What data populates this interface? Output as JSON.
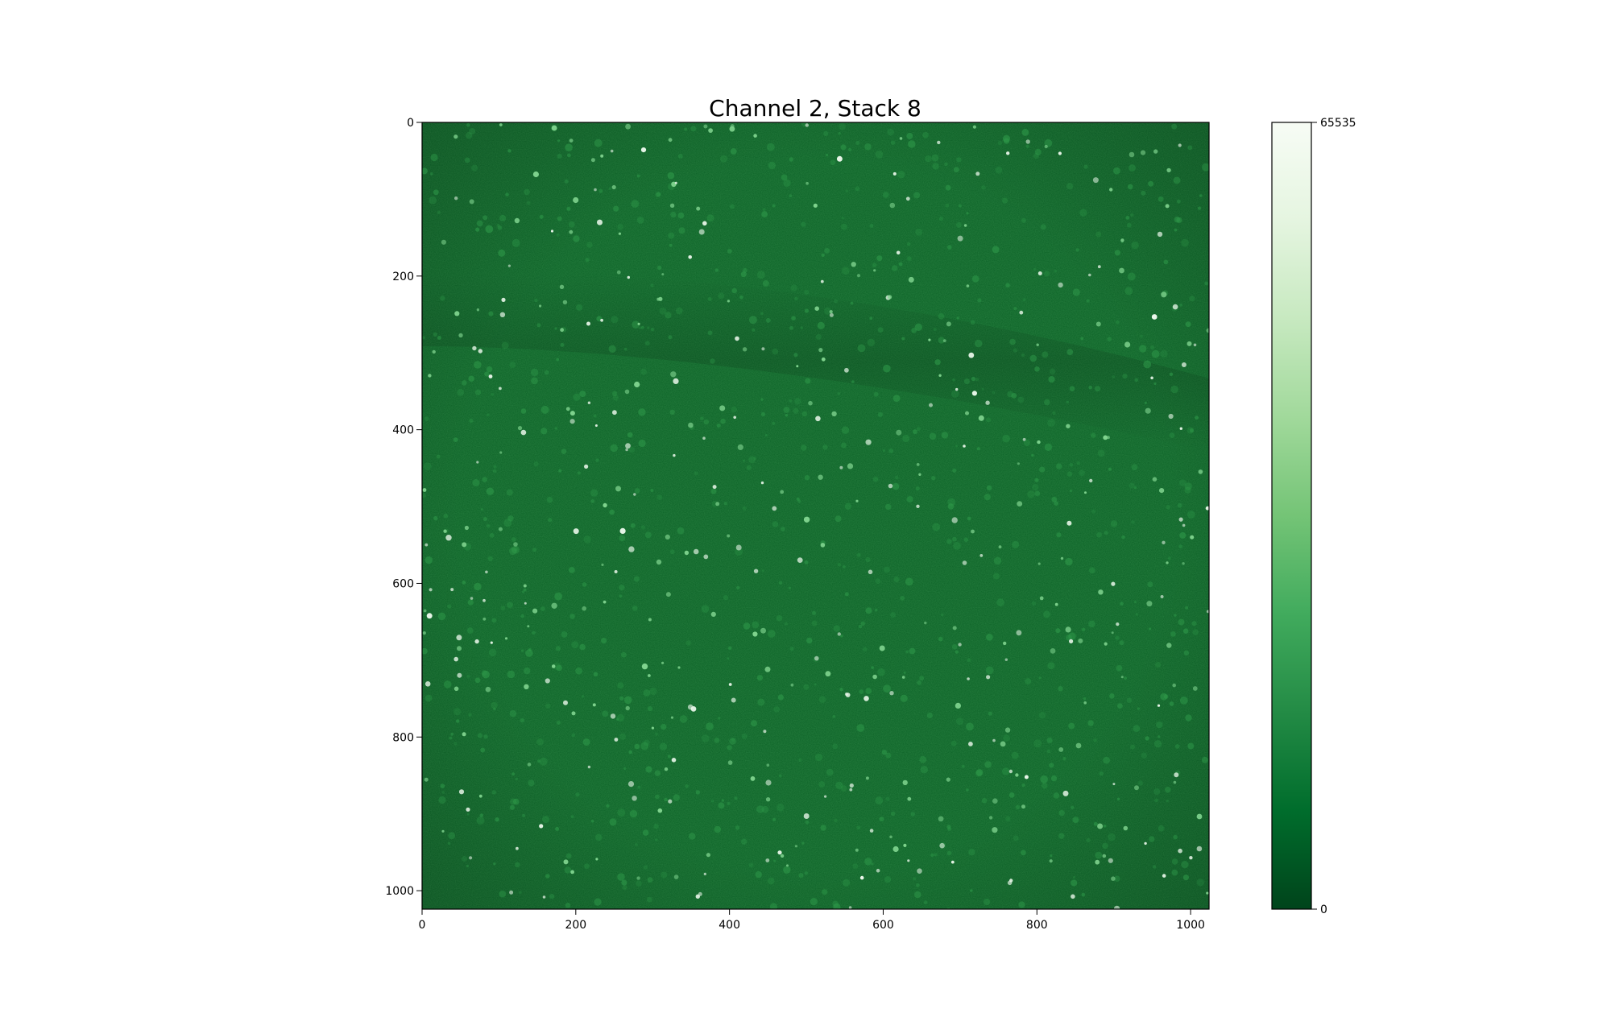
{
  "figure": {
    "title": "Channel 2, Stack 8",
    "colormap_name": "Greens_r",
    "background_color": "#0b6126",
    "spot_color": "#eaf7ea"
  },
  "image_axes": {
    "x_ticks": [
      0,
      200,
      400,
      600,
      800,
      1000
    ],
    "y_ticks": [
      0,
      200,
      400,
      600,
      800,
      1000
    ],
    "x_range": [
      0,
      1024
    ],
    "y_range": [
      0,
      1024
    ],
    "y_inverted": true
  },
  "colorbar": {
    "min_label": "0",
    "max_label": "65535",
    "min_value": 0,
    "max_value": 65535,
    "gradient_colors": [
      "#00441b",
      "#006d2c",
      "#238b45",
      "#41ab5d",
      "#74c476",
      "#a1d99b",
      "#c7e9c0",
      "#e5f5e0",
      "#f7fcf5"
    ]
  }
}
